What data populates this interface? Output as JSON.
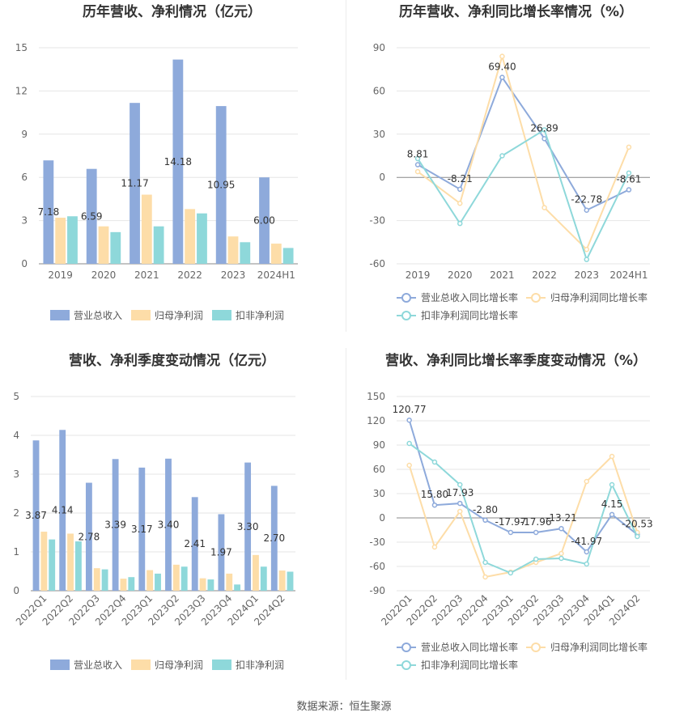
{
  "source": "数据来源：恒生聚源",
  "colors": {
    "revenue": "#8eaadb",
    "net_profit": "#fddda8",
    "deducted_profit": "#8ed8da",
    "revenue_growth": "#8eaadb",
    "net_profit_growth": "#fddda8",
    "deducted_profit_growth": "#8ed8da"
  },
  "chart_data": [
    {
      "type": "bar",
      "title": "历年营收、净利情况（亿元）",
      "categories": [
        "2019",
        "2020",
        "2021",
        "2022",
        "2023",
        "2024H1"
      ],
      "ylim": [
        0,
        15
      ],
      "yticks": [
        0,
        3,
        6,
        9,
        12,
        15
      ],
      "grid": true,
      "legend_position": "bottom",
      "series": [
        {
          "name": "营业总收入",
          "values": [
            7.18,
            6.59,
            11.17,
            14.18,
            10.95,
            6.0
          ],
          "labeled": true
        },
        {
          "name": "归母净利润",
          "values": [
            3.2,
            2.6,
            4.8,
            3.8,
            1.9,
            1.4
          ],
          "labeled": false
        },
        {
          "name": "扣非净利润",
          "values": [
            3.3,
            2.2,
            2.6,
            3.5,
            1.5,
            1.1
          ],
          "labeled": false
        }
      ],
      "labels": [
        "7.18",
        "6.59",
        "11.17",
        "14.18",
        "10.95",
        "6.00"
      ]
    },
    {
      "type": "line",
      "title": "历年营收、净利同比增长率情况（%）",
      "categories": [
        "2019",
        "2020",
        "2021",
        "2022",
        "2023",
        "2024H1"
      ],
      "ylim": [
        -60,
        90
      ],
      "yticks": [
        -60,
        -30,
        0,
        30,
        60,
        90
      ],
      "grid": true,
      "legend_position": "bottom",
      "series": [
        {
          "name": "营业总收入同比增长率",
          "values": [
            8.81,
            -8.21,
            69.4,
            26.89,
            -22.78,
            -8.61
          ],
          "labeled": true
        },
        {
          "name": "归母净利润同比增长率",
          "values": [
            4,
            -18,
            84,
            -21,
            -50,
            21
          ],
          "labeled": false
        },
        {
          "name": "扣非净利润同比增长率",
          "values": [
            13,
            -32,
            15,
            33,
            -57,
            3
          ],
          "labeled": false
        }
      ],
      "labels": [
        "8.81",
        "-8.21",
        "69.40",
        "26.89",
        "-22.78",
        "-8.61"
      ]
    },
    {
      "type": "bar",
      "title": "营收、净利季度变动情况（亿元）",
      "categories": [
        "2022Q1",
        "2022Q2",
        "2022Q3",
        "2022Q4",
        "2023Q1",
        "2023Q2",
        "2023Q3",
        "2023Q4",
        "2024Q1",
        "2024Q2"
      ],
      "ylim": [
        0,
        5
      ],
      "yticks": [
        0,
        1,
        2,
        3,
        4,
        5
      ],
      "grid": true,
      "legend_position": "bottom",
      "series": [
        {
          "name": "营业总收入",
          "values": [
            3.87,
            4.14,
            2.78,
            3.39,
            3.17,
            3.4,
            2.41,
            1.97,
            3.3,
            2.7
          ],
          "labeled": true
        },
        {
          "name": "归母净利润",
          "values": [
            1.52,
            1.47,
            0.58,
            0.31,
            0.53,
            0.67,
            0.32,
            0.44,
            0.92,
            0.52
          ],
          "labeled": false
        },
        {
          "name": "扣非净利润",
          "values": [
            1.32,
            1.27,
            0.55,
            0.35,
            0.44,
            0.62,
            0.29,
            0.16,
            0.62,
            0.49
          ],
          "labeled": false
        }
      ],
      "labels": [
        "3.87",
        "4.14",
        "2.78",
        "3.39",
        "3.17",
        "3.40",
        "2.41",
        "1.97",
        "3.30",
        "2.70"
      ]
    },
    {
      "type": "line",
      "title": "营收、净利同比增长率季度变动情况（%）",
      "categories": [
        "2022Q1",
        "2022Q2",
        "2022Q3",
        "2022Q4",
        "2023Q1",
        "2023Q2",
        "2023Q3",
        "2023Q4",
        "2024Q1",
        "2024Q2"
      ],
      "ylim": [
        -90,
        150
      ],
      "yticks": [
        -90,
        -60,
        -30,
        0,
        30,
        60,
        90,
        120,
        150
      ],
      "grid": true,
      "legend_position": "bottom",
      "series": [
        {
          "name": "营业总收入同比增长率",
          "values": [
            120.77,
            15.8,
            17.93,
            -2.8,
            -17.97,
            -17.96,
            -13.21,
            -41.97,
            4.15,
            -20.53
          ],
          "labeled": true
        },
        {
          "name": "归母净利润同比增长率",
          "values": [
            65,
            -36,
            8,
            -73,
            -67,
            -55,
            -44,
            45,
            76,
            -18
          ],
          "labeled": false
        },
        {
          "name": "扣非净利润同比增长率",
          "values": [
            92,
            69,
            41,
            -55,
            -68,
            -51,
            -50,
            -57,
            41,
            -23
          ],
          "labeled": false
        }
      ],
      "labels": [
        "120.77",
        "15.80",
        "17.93",
        "-2.80",
        "-17.97",
        "-17.96",
        "-13.21",
        "-41.97",
        "4.15",
        "-20.53"
      ]
    }
  ]
}
